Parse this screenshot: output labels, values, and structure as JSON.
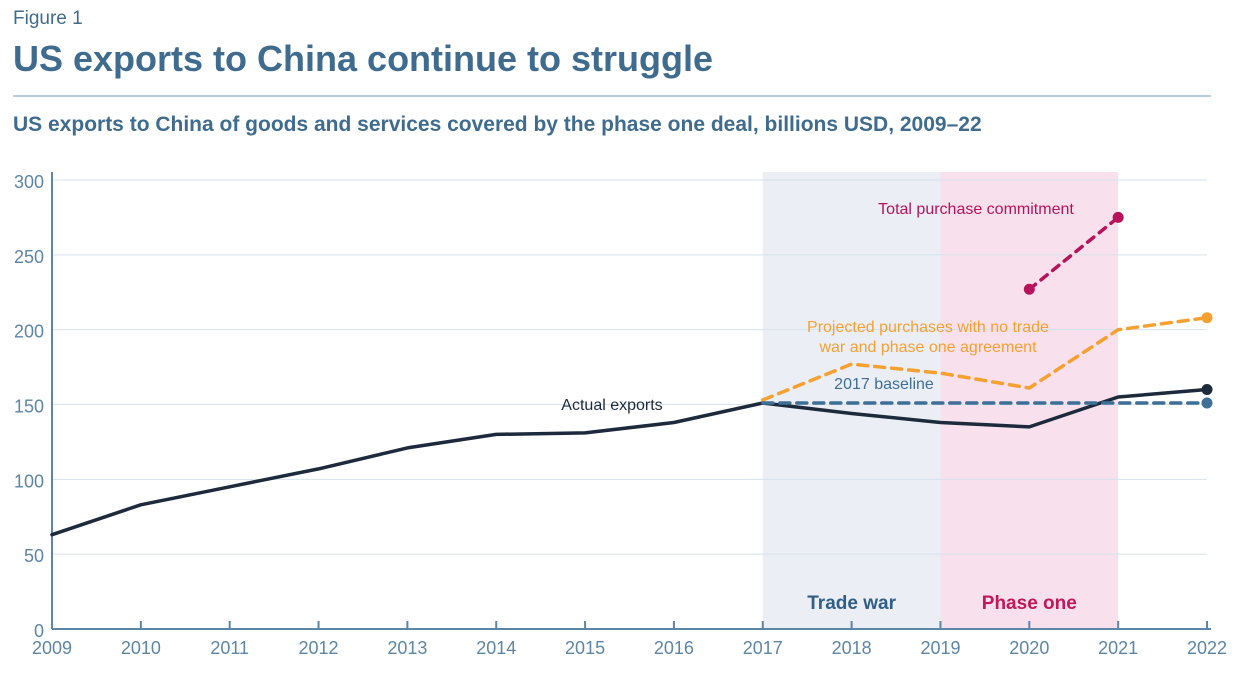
{
  "header": {
    "figure_label": "Figure 1",
    "title": "US exports to China continue to struggle",
    "subtitle": "US exports to China of goods and services covered by the phase one deal, billions USD, 2009–22"
  },
  "colors": {
    "axis": "#5d86a6",
    "grid": "#d6e2ec",
    "actual": "#1c2a3c",
    "projected": "#f5a131",
    "baseline": "#3d6f97",
    "commitment": "#b5145c",
    "trade_war_band": "#ebeef5",
    "phase_one_band": "#f8e1ec",
    "trade_war_text": "#2f5f86",
    "phase_one_text": "#c2185b"
  },
  "chart_data": {
    "type": "line",
    "x": [
      2009,
      2010,
      2011,
      2012,
      2013,
      2014,
      2015,
      2016,
      2017,
      2018,
      2019,
      2020,
      2021,
      2022
    ],
    "ylim": [
      0,
      300
    ],
    "yticks": [
      0,
      50,
      100,
      150,
      200,
      250,
      300
    ],
    "series": [
      {
        "key": "actual",
        "name": "Actual exports",
        "x": [
          2009,
          2010,
          2011,
          2012,
          2013,
          2014,
          2015,
          2016,
          2017,
          2018,
          2019,
          2020,
          2021,
          2022
        ],
        "values": [
          63,
          83,
          95,
          107,
          121,
          130,
          131,
          138,
          151,
          144,
          138,
          135,
          155,
          160
        ],
        "end_marker": true
      },
      {
        "key": "projected",
        "name": "Projected purchases with no trade war and phase one agreement",
        "name_lines": [
          "Projected purchases with no trade",
          "war and phase one agreement"
        ],
        "x": [
          2017,
          2018,
          2019,
          2020,
          2021,
          2022
        ],
        "values": [
          153,
          177,
          171,
          161,
          200,
          208
        ],
        "end_marker": true
      },
      {
        "key": "baseline",
        "name": "2017  baseline",
        "x": [
          2017,
          2022
        ],
        "values": [
          151,
          151
        ],
        "end_marker": true
      },
      {
        "key": "commitment",
        "name": "Total purchase commitment",
        "x": [
          2020,
          2021
        ],
        "values": [
          227,
          275
        ],
        "end_marker": true
      }
    ],
    "bands": [
      {
        "key": "trade_war",
        "label": "Trade war",
        "from": 2017,
        "to": 2019
      },
      {
        "key": "phase_one",
        "label": "Phase one",
        "from": 2019,
        "to": 2021
      }
    ]
  }
}
